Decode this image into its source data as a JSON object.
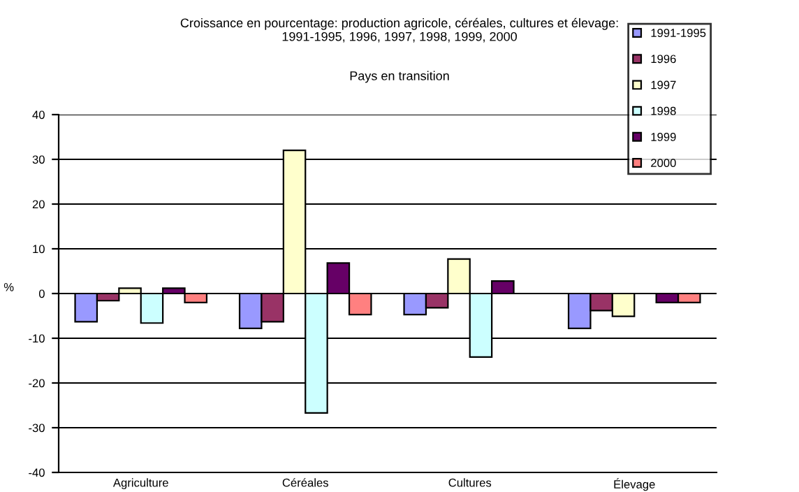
{
  "chart_data": {
    "type": "bar",
    "title": "Croissance en pourcentage: production agricole, céréales, cultures et élevage:\n1991-1995, 1996, 1997, 1998, 1999, 2000",
    "subtitle": "Pays en transition",
    "ylabel": "%",
    "categories": [
      "Agriculture",
      "Céréales",
      "Cultures",
      "Élevage"
    ],
    "series": [
      {
        "name": "1991-1995",
        "color": "#9999ff",
        "values": [
          -6.3,
          -7.8,
          -4.7,
          -7.8
        ]
      },
      {
        "name": "1996",
        "color": "#993366",
        "values": [
          -1.6,
          -6.3,
          -3.2,
          -3.8
        ]
      },
      {
        "name": "1997",
        "color": "#ffffcc",
        "values": [
          1.2,
          32,
          7.7,
          -5.1
        ]
      },
      {
        "name": "1998",
        "color": "#ccffff",
        "values": [
          -6.6,
          -26.7,
          -14.2,
          null
        ]
      },
      {
        "name": "1999",
        "color": "#660066",
        "values": [
          1.2,
          6.8,
          2.8,
          -2.0
        ]
      },
      {
        "name": "2000",
        "color": "#ff8080",
        "values": [
          -2.0,
          -4.7,
          null,
          -2.0
        ]
      }
    ],
    "ylim": [
      -40,
      40
    ],
    "yticks": [
      -40,
      -30,
      -20,
      -10,
      0,
      10,
      20,
      30,
      40
    ],
    "grid": "y",
    "legend": "top right"
  }
}
